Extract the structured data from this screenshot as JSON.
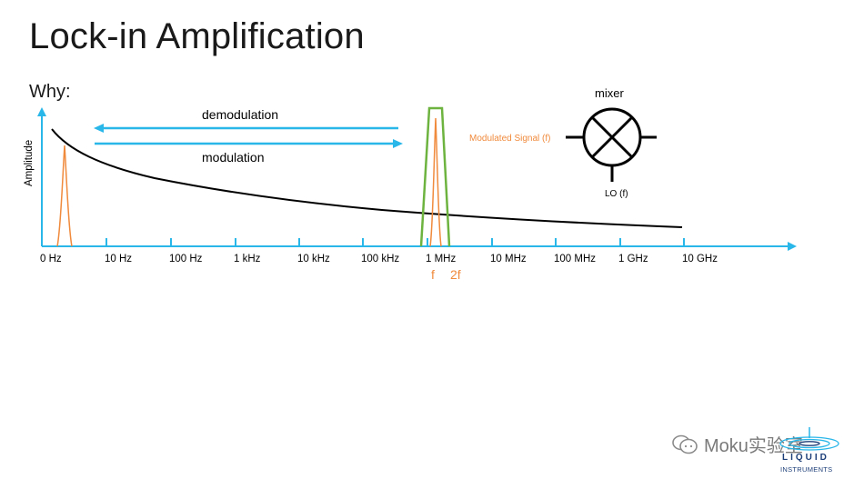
{
  "slide": {
    "title": "Lock-in Amplification",
    "subtitle": "Why:"
  },
  "diagram": {
    "y_axis_label": "Amplitude",
    "x_ticks": [
      "0 Hz",
      "10 Hz",
      "100 Hz",
      "1 kHz",
      "10 kHz",
      "100 kHz",
      "1 MHz",
      "10 MHz",
      "100 MHz",
      "1 GHz",
      "10 GHz"
    ],
    "arrows": {
      "demodulation": "demodulation",
      "modulation": "modulation"
    },
    "peak_labels": {
      "f": "f",
      "two_f": "2f"
    },
    "mixer": {
      "title": "mixer",
      "input_label": "Modulated Signal (f)",
      "lo_label": "LO (f)"
    },
    "colors": {
      "axis": "#29B6E8",
      "signal": "#F08A3C",
      "filter": "#6DB33F",
      "curve": "#000000"
    }
  },
  "watermark": {
    "text": "Moku实验室"
  },
  "brand": {
    "line1": "LIQUID",
    "line2": "INSTRUMENTS"
  }
}
